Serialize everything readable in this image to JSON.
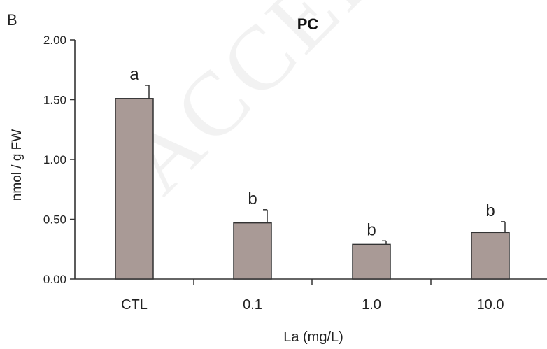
{
  "panel_label": "B",
  "watermark": "ACCEPTED MANUSCRIPT",
  "colors": {
    "bar_fill": "#a99a96",
    "bar_stroke": "#333333",
    "axis": "#333333"
  },
  "chart_data": {
    "type": "bar",
    "title": "PC",
    "xlabel": "La (mg/L)",
    "ylabel": "nmol / g FW",
    "categories": [
      "CTL",
      "0.1",
      "1.0",
      "10.0"
    ],
    "values": [
      1.51,
      0.47,
      0.29,
      0.39
    ],
    "errors": [
      0.11,
      0.11,
      0.03,
      0.09
    ],
    "significance_labels": [
      "a",
      "b",
      "b",
      "b"
    ],
    "ylim": [
      0,
      2.0
    ],
    "yticks": [
      "0.00",
      "0.50",
      "1.00",
      "1.50",
      "2.00"
    ],
    "grid": false,
    "legend": "none"
  }
}
